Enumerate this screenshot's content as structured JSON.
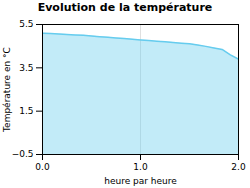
{
  "chart_data": {
    "type": "area",
    "title": "Evolution de la température",
    "xlabel": "heure par heure",
    "ylabel": "Température en °C",
    "x": [
      0.0,
      0.083,
      0.167,
      0.25,
      0.333,
      0.417,
      0.5,
      0.583,
      0.667,
      0.75,
      0.833,
      0.917,
      1.0,
      1.083,
      1.167,
      1.25,
      1.333,
      1.417,
      1.5,
      1.583,
      1.667,
      1.75,
      1.833,
      1.917,
      2.0
    ],
    "values": [
      5.1,
      5.08,
      5.06,
      5.04,
      5.02,
      5.0,
      4.97,
      4.94,
      4.91,
      4.88,
      4.85,
      4.82,
      4.79,
      4.76,
      4.73,
      4.7,
      4.67,
      4.64,
      4.61,
      4.55,
      4.49,
      4.42,
      4.35,
      4.1,
      3.9
    ],
    "color": "#66ccee",
    "xlim": [
      0,
      2
    ],
    "xticks": [
      0,
      1,
      2
    ],
    "ylim": [
      -0.5,
      5.5
    ],
    "yticks": [
      -0.5,
      1.5,
      3.5,
      5.5
    ],
    "grid": true
  }
}
